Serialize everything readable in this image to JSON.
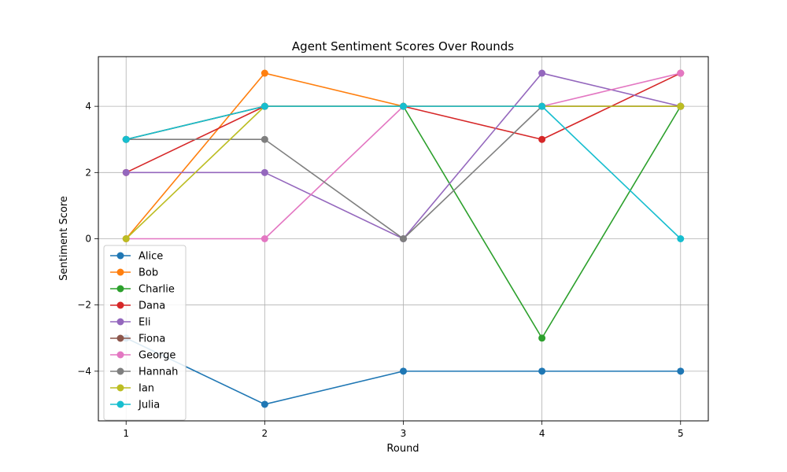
{
  "chart_data": {
    "type": "line",
    "title": "Agent Sentiment Scores Over Rounds",
    "xlabel": "Round",
    "ylabel": "Sentiment Score",
    "x": [
      1,
      2,
      3,
      4,
      5
    ],
    "xlim": [
      0.8,
      5.2
    ],
    "ylim": [
      -5.5,
      5.5
    ],
    "xticks": [
      1,
      2,
      3,
      4,
      5
    ],
    "yticks": [
      -4,
      -2,
      0,
      2,
      4
    ],
    "ytick_labels": [
      "−4",
      "−2",
      "0",
      "2",
      "4"
    ],
    "grid": true,
    "legend_position": "lower-left",
    "series": [
      {
        "name": "Alice",
        "color": "#1f77b4",
        "values": [
          -3,
          -5,
          -4,
          -4,
          -4
        ]
      },
      {
        "name": "Bob",
        "color": "#ff7f0e",
        "values": [
          0,
          5,
          4,
          4,
          4
        ]
      },
      {
        "name": "Charlie",
        "color": "#2ca02c",
        "values": [
          3,
          4,
          4,
          -3,
          4
        ]
      },
      {
        "name": "Dana",
        "color": "#d62728",
        "values": [
          2,
          4,
          4,
          3,
          5
        ]
      },
      {
        "name": "Eli",
        "color": "#9467bd",
        "values": [
          2,
          2,
          0,
          5,
          4
        ]
      },
      {
        "name": "Fiona",
        "color": "#8c564b",
        "values": [
          3,
          4,
          4,
          4,
          4
        ]
      },
      {
        "name": "George",
        "color": "#e377c2",
        "values": [
          0,
          0,
          4,
          4,
          5
        ]
      },
      {
        "name": "Hannah",
        "color": "#7f7f7f",
        "values": [
          3,
          3,
          0,
          4,
          4
        ]
      },
      {
        "name": "Ian",
        "color": "#bcbd22",
        "values": [
          0,
          4,
          4,
          4,
          4
        ]
      },
      {
        "name": "Julia",
        "color": "#17becf",
        "values": [
          3,
          4,
          4,
          4,
          0
        ]
      }
    ]
  }
}
